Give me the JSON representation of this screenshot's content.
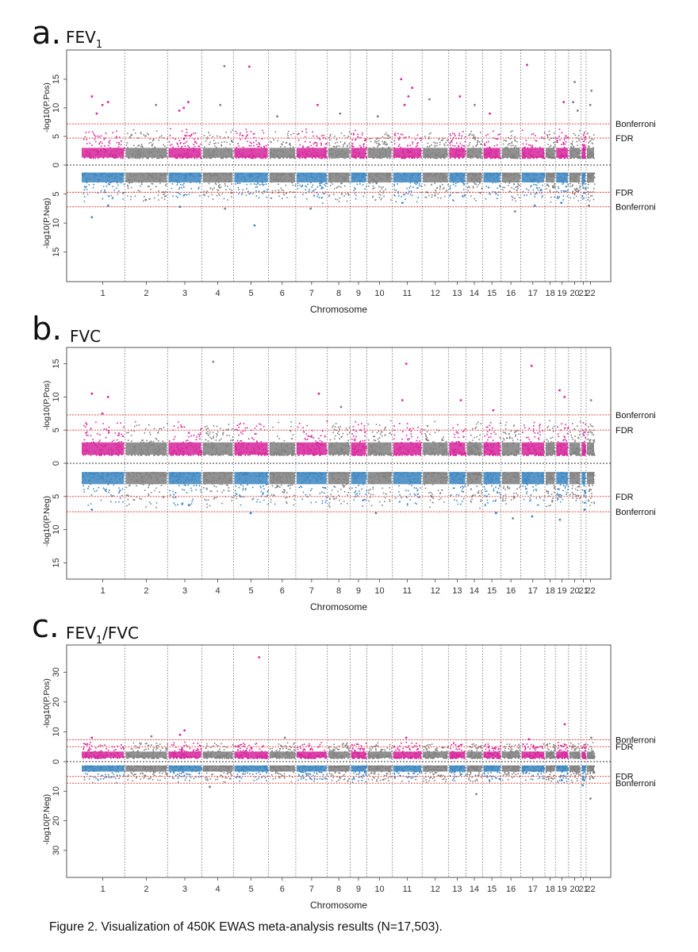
{
  "caption": "Figure 2. Visualization of 450K EWAS meta-analysis results (N=17,503).",
  "colors": {
    "pos_highlight": "#d6249a",
    "neg_highlight": "#3d86c0",
    "other": "#7f7f7f",
    "threshold_line": "#e0302a",
    "chrom_divider": "#6a6a6a",
    "zero_line": "#333333"
  },
  "chart_data": [
    {
      "type": "scatter",
      "subtype": "miami",
      "letter": "a.",
      "title": "FEV",
      "title_sub": "1",
      "title_suffix": "",
      "xlabel": "Chromosome",
      "ylabel_top": "-log10(P.Pos)",
      "ylabel_bottom": "-log10(P.Neg)",
      "categories": [
        "1",
        "2",
        "3",
        "4",
        "5",
        "6",
        "7",
        "8",
        "9",
        "10",
        "11",
        "12",
        "13",
        "14",
        "15",
        "16",
        "17",
        "18",
        "19",
        "20",
        "21",
        "22"
      ],
      "yticks_top": [
        0,
        5,
        10,
        15
      ],
      "yticks_bottom": [
        5,
        10,
        15
      ],
      "ylim_top": [
        0,
        19
      ],
      "ylim_bottom": [
        0,
        19
      ],
      "thresholds": {
        "bonferroni": 7.2,
        "fdr": 4.7
      },
      "threshold_labels": {
        "bonferroni": "Bonferroni",
        "fdr": "FDR"
      },
      "band_max": 4.0,
      "highlights_pos": [
        {
          "chr": "1",
          "v": 12
        },
        {
          "chr": "1",
          "v": 11
        },
        {
          "chr": "1",
          "v": 10.5
        },
        {
          "chr": "1",
          "v": 9
        },
        {
          "chr": "2",
          "v": 10.5
        },
        {
          "chr": "3",
          "v": 11
        },
        {
          "chr": "3",
          "v": 10
        },
        {
          "chr": "3",
          "v": 9.5
        },
        {
          "chr": "4",
          "v": 17.3
        },
        {
          "chr": "4",
          "v": 10.5
        },
        {
          "chr": "5",
          "v": 17.2
        },
        {
          "chr": "6",
          "v": 8.5
        },
        {
          "chr": "7",
          "v": 10.5
        },
        {
          "chr": "8",
          "v": 9
        },
        {
          "chr": "10",
          "v": 8.5
        },
        {
          "chr": "11",
          "v": 15
        },
        {
          "chr": "11",
          "v": 13.5
        },
        {
          "chr": "11",
          "v": 12
        },
        {
          "chr": "11",
          "v": 10.5
        },
        {
          "chr": "12",
          "v": 11.5
        },
        {
          "chr": "13",
          "v": 12
        },
        {
          "chr": "14",
          "v": 10.5
        },
        {
          "chr": "15",
          "v": 9
        },
        {
          "chr": "17",
          "v": 17.5
        },
        {
          "chr": "19",
          "v": 11
        },
        {
          "chr": "20",
          "v": 14.5
        },
        {
          "chr": "20",
          "v": 11
        },
        {
          "chr": "20",
          "v": 9.5
        },
        {
          "chr": "22",
          "v": 13
        },
        {
          "chr": "22",
          "v": 10.5
        }
      ],
      "highlights_neg": [
        {
          "chr": "1",
          "v": 9
        },
        {
          "chr": "1",
          "v": 7
        },
        {
          "chr": "2",
          "v": 6
        },
        {
          "chr": "3",
          "v": 7.2
        },
        {
          "chr": "4",
          "v": 7.5
        },
        {
          "chr": "5",
          "v": 10.4
        },
        {
          "chr": "7",
          "v": 7.5
        },
        {
          "chr": "11",
          "v": 6.5
        },
        {
          "chr": "16",
          "v": 8
        },
        {
          "chr": "17",
          "v": 7
        },
        {
          "chr": "19",
          "v": 6.5
        },
        {
          "chr": "22",
          "v": 7
        }
      ]
    },
    {
      "type": "scatter",
      "subtype": "miami",
      "letter": "b.",
      "title": "FVC",
      "title_sub": "",
      "title_suffix": "",
      "xlabel": "Chromosome",
      "ylabel_top": "-log10(P.Pos)",
      "ylabel_bottom": "-log10(P.Neg)",
      "categories": [
        "1",
        "2",
        "3",
        "4",
        "5",
        "6",
        "7",
        "8",
        "9",
        "10",
        "11",
        "12",
        "13",
        "14",
        "15",
        "16",
        "17",
        "18",
        "19",
        "20",
        "21",
        "22"
      ],
      "yticks_top": [
        0,
        5,
        10,
        15
      ],
      "yticks_bottom": [
        5,
        10,
        15
      ],
      "ylim_top": [
        0,
        16.5
      ],
      "ylim_bottom": [
        0,
        16.5
      ],
      "thresholds": {
        "bonferroni": 7.3,
        "fdr": 5.0
      },
      "threshold_labels": {
        "bonferroni": "Bonferroni",
        "fdr": "FDR"
      },
      "band_max": 4.2,
      "highlights_pos": [
        {
          "chr": "1",
          "v": 10.5
        },
        {
          "chr": "1",
          "v": 10
        },
        {
          "chr": "1",
          "v": 7.5
        },
        {
          "chr": "4",
          "v": 15.3
        },
        {
          "chr": "7",
          "v": 10.5
        },
        {
          "chr": "8",
          "v": 8.5
        },
        {
          "chr": "11",
          "v": 15
        },
        {
          "chr": "11",
          "v": 9.5
        },
        {
          "chr": "13",
          "v": 9.5
        },
        {
          "chr": "15",
          "v": 8
        },
        {
          "chr": "17",
          "v": 14.7
        },
        {
          "chr": "19",
          "v": 11
        },
        {
          "chr": "19",
          "v": 10
        },
        {
          "chr": "22",
          "v": 9.5
        }
      ],
      "highlights_neg": [
        {
          "chr": "1",
          "v": 7
        },
        {
          "chr": "3",
          "v": 6.3
        },
        {
          "chr": "5",
          "v": 7.5
        },
        {
          "chr": "10",
          "v": 7.5
        },
        {
          "chr": "15",
          "v": 7.5
        },
        {
          "chr": "16",
          "v": 8.3
        },
        {
          "chr": "17",
          "v": 8
        },
        {
          "chr": "19",
          "v": 8.5
        },
        {
          "chr": "21",
          "v": 7
        }
      ]
    },
    {
      "type": "scatter",
      "subtype": "miami",
      "letter": "c.",
      "title": "FEV",
      "title_sub": "1",
      "title_suffix": "/FVC",
      "xlabel": "Chromosome",
      "ylabel_top": "-log10(P.Pos)",
      "ylabel_bottom": "-log10(P.Neg)",
      "categories": [
        "1",
        "2",
        "3",
        "4",
        "5",
        "6",
        "7",
        "8",
        "9",
        "10",
        "11",
        "12",
        "13",
        "14",
        "15",
        "16",
        "17",
        "18",
        "19",
        "20",
        "21",
        "22"
      ],
      "yticks_top": [
        0,
        10,
        20,
        30
      ],
      "yticks_bottom": [
        10,
        20,
        30
      ],
      "ylim_top": [
        0,
        37
      ],
      "ylim_bottom": [
        0,
        37
      ],
      "thresholds": {
        "bonferroni": 7.3,
        "fdr": 5.0
      },
      "threshold_labels": {
        "bonferroni": "Bonferroni",
        "fdr": "FDR"
      },
      "band_max": 4.5,
      "highlights_pos": [
        {
          "chr": "1",
          "v": 8
        },
        {
          "chr": "2",
          "v": 8.5
        },
        {
          "chr": "3",
          "v": 10.5
        },
        {
          "chr": "3",
          "v": 9
        },
        {
          "chr": "5",
          "v": 35
        },
        {
          "chr": "6",
          "v": 8
        },
        {
          "chr": "11",
          "v": 8
        },
        {
          "chr": "17",
          "v": 7.5
        },
        {
          "chr": "19",
          "v": 12.5
        },
        {
          "chr": "22",
          "v": 8
        }
      ],
      "highlights_neg": [
        {
          "chr": "4",
          "v": 8.5
        },
        {
          "chr": "14",
          "v": 11
        },
        {
          "chr": "22",
          "v": 12.5
        },
        {
          "chr": "21",
          "v": 8
        }
      ]
    }
  ]
}
